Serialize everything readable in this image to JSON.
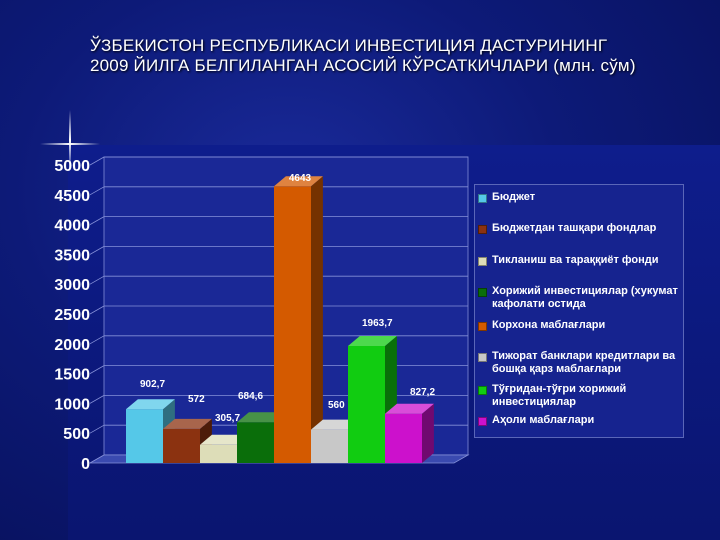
{
  "slide": {
    "title_line1": "ЎЗБЕКИСТОН РЕСПУБЛИКАСИ ИНВЕСТИЦИЯ ДАСТУРИНИНГ",
    "title_line2": "2009 ЙИЛГА БЕЛГИЛАНГАН АСОСИЙ КЎРСАТКИЧЛАРИ (млн. сўм)"
  },
  "chart_data": {
    "type": "bar",
    "title": "ЎЗБЕКИСТОН РЕСПУБЛИКАСИ ИНВЕСТИЦИЯ ДАСТУРИНИНГ 2009 ЙИЛГА БЕЛГИЛАНГАН АСОСИЙ КЎРСАТКИЧЛАРИ (млн. сўм)",
    "ylim": [
      0,
      5000
    ],
    "yticks": [
      "0",
      "500",
      "1000",
      "1500",
      "2000",
      "2500",
      "3000",
      "3500",
      "4000",
      "4500",
      "5000"
    ],
    "grid": true,
    "legend_position": "right",
    "series": [
      {
        "name": "Бюджет",
        "value": 902.7,
        "label": "902,7",
        "color": "#55c8e8"
      },
      {
        "name": "Бюджетдан ташқари фондлар",
        "value": 572,
        "label": "572",
        "color": "#8b3210"
      },
      {
        "name": "Тикланиш ва тараққиёт фонди",
        "value": 305.7,
        "label": "305,7",
        "color": "#ddddb8"
      },
      {
        "name": "Хорижий инвестициялар (хукумат кафолати остида",
        "value": 684.6,
        "label": "684,6",
        "color": "#0a6e0a"
      },
      {
        "name": "Корхона маблағлари",
        "value": 4643,
        "label": "4643",
        "color": "#d45a00"
      },
      {
        "name": "Тижорат банклари кредитлари ва бошқа қарз маблағлари",
        "value": 560,
        "label": "560",
        "color": "#c8c8c8"
      },
      {
        "name": "Тўғридан-тўғри хорижий инвестициялар",
        "value": 1963.7,
        "label": "1963,7",
        "color": "#11cc11"
      },
      {
        "name": "Аҳоли маблағлари",
        "value": 827.2,
        "label": "827,2",
        "color": "#cc11cc"
      }
    ]
  }
}
